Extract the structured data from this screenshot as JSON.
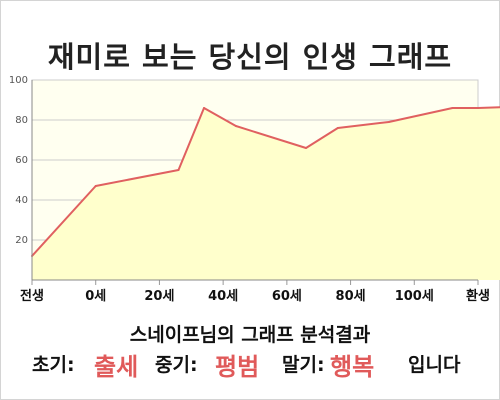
{
  "title": "재미로 보는 당신의 인생 그래프",
  "subtitle": "스네이프님의 그래프 분석결과",
  "results": {
    "early_label": "초기:",
    "early_value": "출세",
    "mid_label": "중기:",
    "mid_value": "평범",
    "late_label": "말기:",
    "late_value": "행복",
    "suffix": "입니다"
  },
  "colors": {
    "line": "#e06060",
    "fill": "#ffffcc",
    "plot_bg": "#fffff0",
    "grid": "#cccccc",
    "highlight": "#e05a5a"
  },
  "chart_data": {
    "type": "area",
    "title": "재미로 보는 당신의 인생 그래프",
    "xlabel": "",
    "ylabel": "",
    "x_tick_labels": [
      "전생",
      "0세",
      "20세",
      "40세",
      "60세",
      "80세",
      "100세",
      "환생"
    ],
    "y_ticks": [
      20,
      40,
      60,
      80,
      100
    ],
    "ylim": [
      0,
      100
    ],
    "grid": true,
    "x": [
      0,
      1,
      2.3,
      2.7,
      3.2,
      4.3,
      4.8,
      5.6,
      6.6,
      7.0,
      7.9
    ],
    "y": [
      12,
      47,
      55,
      86,
      77,
      66,
      76,
      79,
      86,
      86,
      87
    ]
  }
}
